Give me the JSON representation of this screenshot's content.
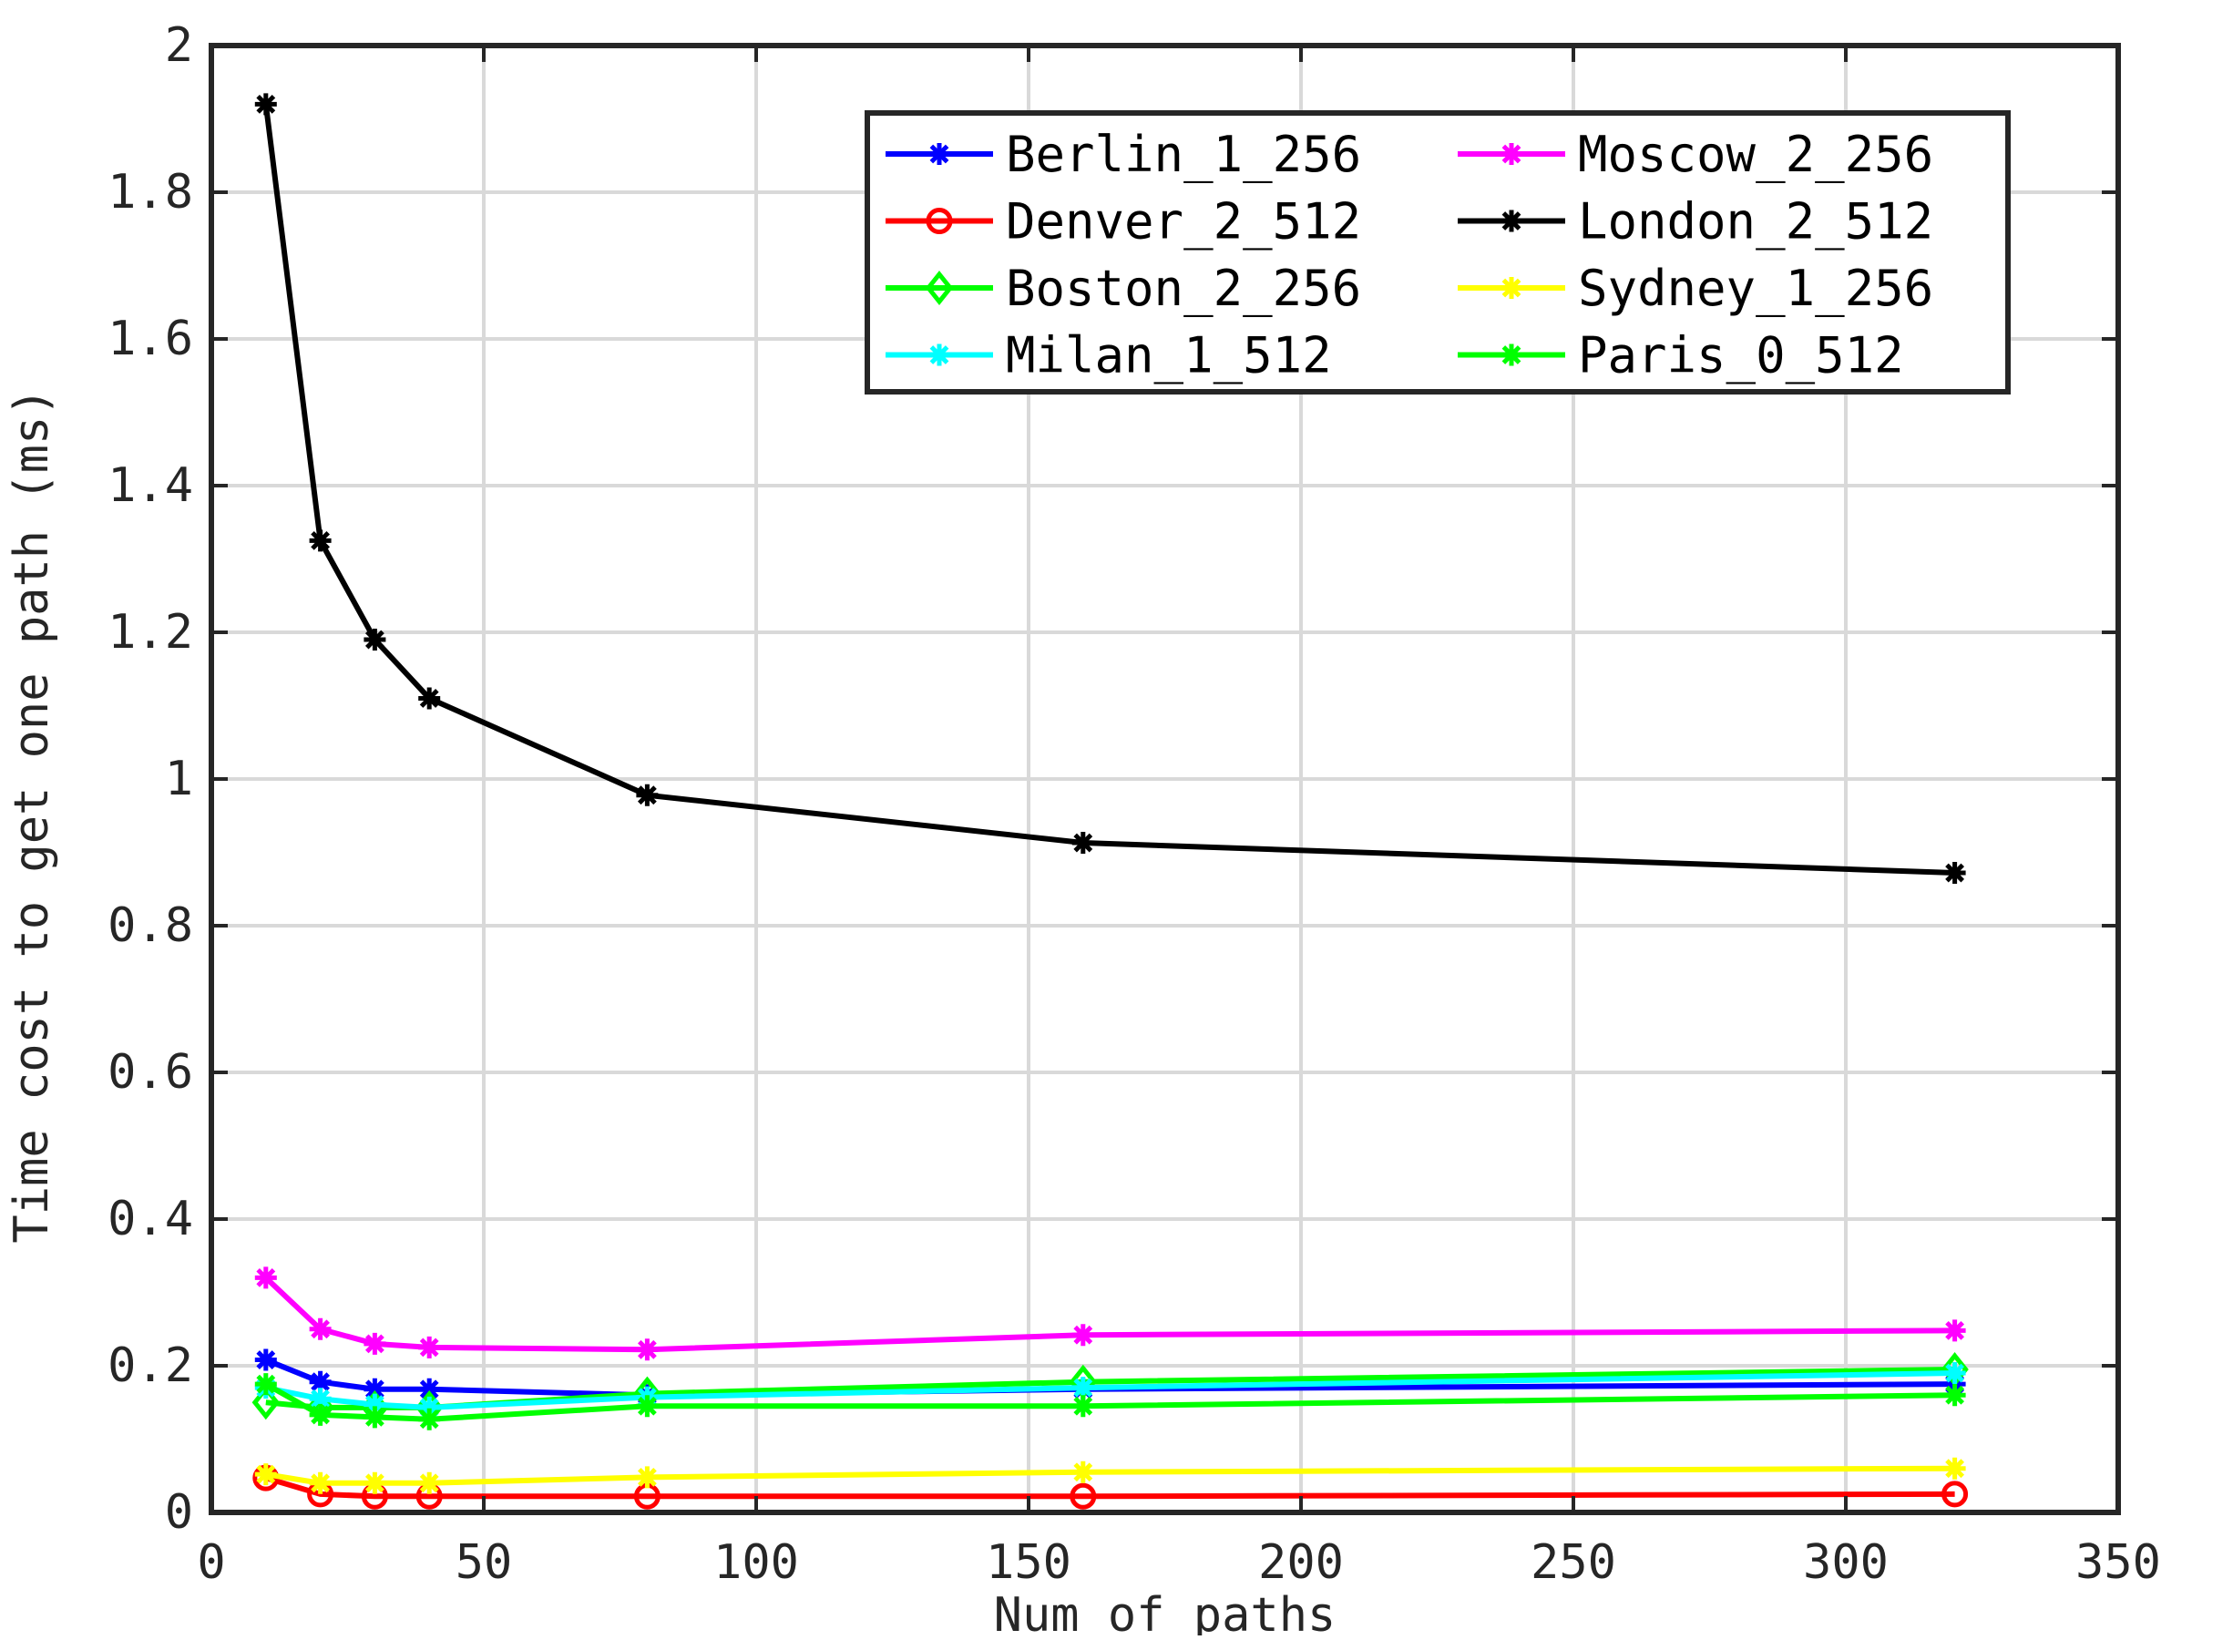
{
  "chart_data": {
    "type": "line",
    "title": "",
    "xlabel": "Num of paths",
    "ylabel": "Time cost to get one path (ms)",
    "xlim": [
      0,
      350
    ],
    "ylim": [
      0,
      2
    ],
    "xticks": [
      0,
      50,
      100,
      150,
      200,
      250,
      300,
      350
    ],
    "yticks": [
      0,
      0.2,
      0.4,
      0.6,
      0.8,
      1,
      1.2,
      1.4,
      1.6,
      1.8,
      2
    ],
    "xtick_labels": [
      "0",
      "50",
      "100",
      "150",
      "200",
      "250",
      "300",
      "350"
    ],
    "ytick_labels": [
      "0",
      "0.2",
      "0.4",
      "0.6",
      "0.8",
      "1",
      "1.2",
      "1.4",
      "1.6",
      "1.8",
      "2"
    ],
    "grid": true,
    "legend_position": "top-right",
    "x": [
      10,
      20,
      30,
      40,
      80,
      160,
      320
    ],
    "series": [
      {
        "name": "Berlin_1_256",
        "color": "#0000ff",
        "marker": "star",
        "values": [
          0.208,
          0.178,
          0.168,
          0.168,
          0.16,
          0.168,
          0.175
        ]
      },
      {
        "name": "Denver_2_512",
        "color": "#ff0000",
        "marker": "circle",
        "values": [
          0.047,
          0.025,
          0.022,
          0.022,
          0.022,
          0.022,
          0.025
        ]
      },
      {
        "name": "Boston_2_256",
        "color": "#00ff00",
        "marker": "diamond",
        "values": [
          0.15,
          0.143,
          0.143,
          0.143,
          0.162,
          0.178,
          0.195
        ]
      },
      {
        "name": "Milan_1_512",
        "color": "#00ffff",
        "marker": "star",
        "values": [
          0.17,
          0.155,
          0.147,
          0.143,
          0.157,
          0.17,
          0.19
        ]
      },
      {
        "name": "Moscow_2_256",
        "color": "#ff00ff",
        "marker": "star",
        "values": [
          0.32,
          0.25,
          0.23,
          0.225,
          0.222,
          0.242,
          0.248
        ]
      },
      {
        "name": "London_2_512",
        "color": "#000000",
        "marker": "star",
        "values": [
          1.92,
          1.325,
          1.19,
          1.11,
          0.978,
          0.913,
          0.872
        ]
      },
      {
        "name": "Sydney_1_256",
        "color": "#ffff00",
        "marker": "star",
        "values": [
          0.052,
          0.04,
          0.04,
          0.04,
          0.048,
          0.055,
          0.06
        ]
      },
      {
        "name": "Paris_0_512",
        "color": "#00ff00",
        "marker": "star",
        "values": [
          0.175,
          0.133,
          0.13,
          0.127,
          0.145,
          0.145,
          0.16
        ]
      }
    ]
  }
}
